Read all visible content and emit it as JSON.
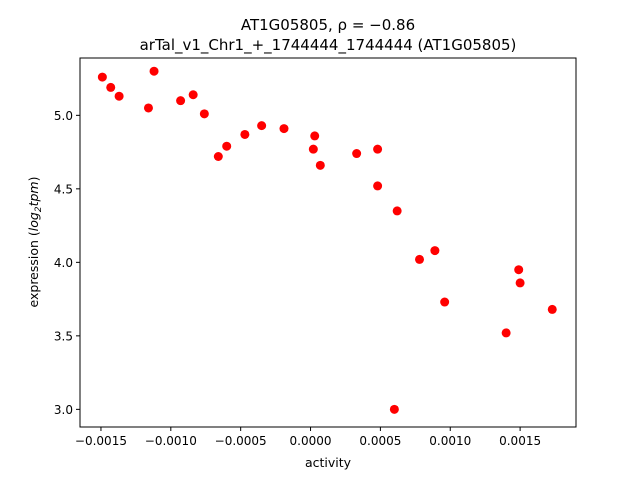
{
  "chart_data": {
    "type": "scatter",
    "title_line1": "AT1G05805, ρ = −0.86",
    "title_line2": "arTal_v1_Chr1_+_1744444_1744444 (AT1G05805)",
    "xlabel": "activity",
    "ylabel_prefix": "expression (",
    "ylabel_math": "log",
    "ylabel_sub": "2",
    "ylabel_math2": "tpm",
    "ylabel_suffix": ")",
    "xlim": [
      -0.00165,
      0.0019
    ],
    "ylim": [
      2.88,
      5.39
    ],
    "xticks": [
      {
        "value": -0.0015,
        "label": "−0.0015"
      },
      {
        "value": -0.001,
        "label": "−0.0010"
      },
      {
        "value": -0.0005,
        "label": "−0.0005"
      },
      {
        "value": 0.0,
        "label": "0.0000"
      },
      {
        "value": 0.0005,
        "label": "0.0005"
      },
      {
        "value": 0.001,
        "label": "0.0010"
      },
      {
        "value": 0.0015,
        "label": "0.0015"
      }
    ],
    "yticks": [
      {
        "value": 3.0,
        "label": "3.0"
      },
      {
        "value": 3.5,
        "label": "3.5"
      },
      {
        "value": 4.0,
        "label": "4.0"
      },
      {
        "value": 4.5,
        "label": "4.5"
      },
      {
        "value": 5.0,
        "label": "5.0"
      }
    ],
    "marker_color": "#ff0000",
    "points": [
      {
        "x": -0.00149,
        "y": 5.26
      },
      {
        "x": -0.00143,
        "y": 5.19
      },
      {
        "x": -0.00137,
        "y": 5.13
      },
      {
        "x": -0.00116,
        "y": 5.05
      },
      {
        "x": -0.00112,
        "y": 5.3
      },
      {
        "x": -0.00093,
        "y": 5.1
      },
      {
        "x": -0.00084,
        "y": 5.14
      },
      {
        "x": -0.00076,
        "y": 5.01
      },
      {
        "x": -0.00066,
        "y": 4.72
      },
      {
        "x": -0.0006,
        "y": 4.79
      },
      {
        "x": -0.00047,
        "y": 4.87
      },
      {
        "x": -0.00035,
        "y": 4.93
      },
      {
        "x": -0.00019,
        "y": 4.91
      },
      {
        "x": 2e-05,
        "y": 4.77
      },
      {
        "x": 3e-05,
        "y": 4.86
      },
      {
        "x": 7e-05,
        "y": 4.66
      },
      {
        "x": 0.00033,
        "y": 4.74
      },
      {
        "x": 0.00048,
        "y": 4.77
      },
      {
        "x": 0.00048,
        "y": 4.52
      },
      {
        "x": 0.0006,
        "y": 3.0
      },
      {
        "x": 0.00062,
        "y": 4.35
      },
      {
        "x": 0.00078,
        "y": 4.02
      },
      {
        "x": 0.00089,
        "y": 4.08
      },
      {
        "x": 0.00096,
        "y": 3.73
      },
      {
        "x": 0.0014,
        "y": 3.52
      },
      {
        "x": 0.00149,
        "y": 3.95
      },
      {
        "x": 0.0015,
        "y": 3.86
      },
      {
        "x": 0.00173,
        "y": 3.68
      }
    ]
  }
}
